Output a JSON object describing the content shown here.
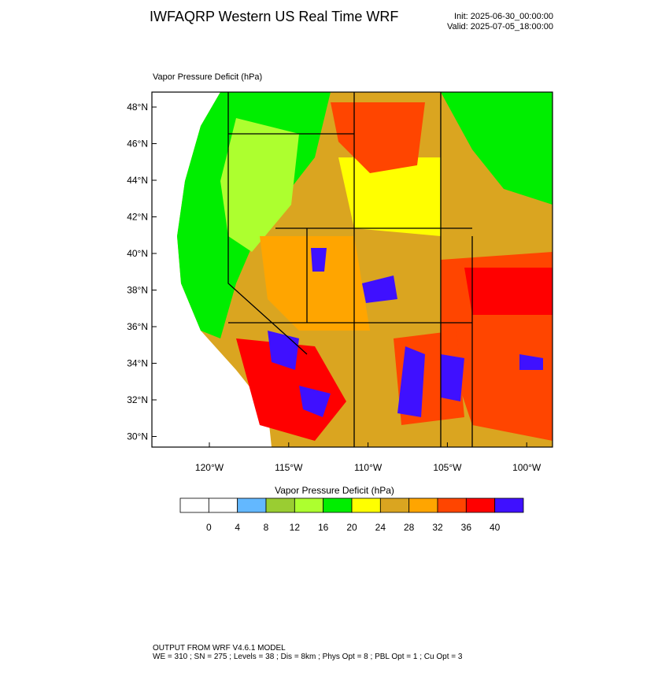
{
  "header": {
    "title": "IWFAQRP Western US Real Time WRF",
    "init": "Init: 2025-06-30_00:00:00",
    "valid": "Valid: 2025-07-05_18:00:00"
  },
  "map": {
    "label": "Vapor Pressure Deficit   (hPa)",
    "lat_ticks": [
      "48°N",
      "46°N",
      "44°N",
      "42°N",
      "40°N",
      "38°N",
      "36°N",
      "34°N",
      "32°N",
      "30°N"
    ],
    "lon_ticks": [
      "120°W",
      "115°W",
      "110°W",
      "105°W",
      "100°W"
    ]
  },
  "colorbar": {
    "title": "Vapor Pressure Deficit  (hPa)",
    "colors": [
      "#ffffff",
      "#ffffff",
      "#63b8ff",
      "#9acd32",
      "#adff2f",
      "#00ee00",
      "#ffff00",
      "#daa520",
      "#ffa500",
      "#ff4500",
      "#ff0000",
      "#3f10ff"
    ],
    "labels": [
      0,
      4,
      8,
      12,
      16,
      20,
      24,
      28,
      32,
      36,
      40
    ]
  },
  "footer": {
    "line1": "OUTPUT FROM WRF V4.6.1 MODEL",
    "line2": "WE = 310 ; SN = 275 ; Levels = 38 ; Dis = 8km ; Phys Opt = 8 ; PBL Opt = 1 ; Cu Opt = 3"
  }
}
